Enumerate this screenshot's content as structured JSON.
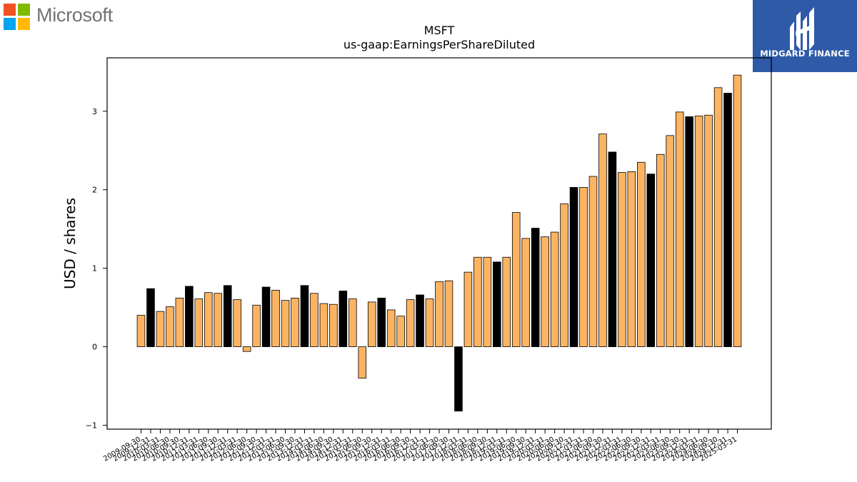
{
  "logo": {
    "text": "Microsoft",
    "colors": [
      "#f25022",
      "#7fba00",
      "#00a4ef",
      "#ffb900"
    ]
  },
  "brand": {
    "text": "MIDGARD FINANCE",
    "color": "#2e5aa8"
  },
  "chart_data": {
    "type": "bar",
    "title": "MSFT",
    "subtitle": "us-gaap:EarningsPerShareDiluted",
    "ylabel": "USD / shares",
    "xlabel": "",
    "ylim": [
      -1.05,
      3.68
    ],
    "yticks": [
      -1,
      0,
      1,
      2,
      3
    ],
    "grid": false,
    "colors": {
      "quarter": "#fdb462",
      "annual": "#000000"
    },
    "bars": [
      {
        "label": "2009-09-30",
        "value": 0.4,
        "annual": false
      },
      {
        "label": "2009-12-31",
        "value": 0.74,
        "annual": true
      },
      {
        "label": "2010-03-31",
        "value": 0.45,
        "annual": false
      },
      {
        "label": "2010-06-30",
        "value": 0.51,
        "annual": false
      },
      {
        "label": "2010-09-30",
        "value": 0.62,
        "annual": false
      },
      {
        "label": "2010-12-31",
        "value": 0.77,
        "annual": true
      },
      {
        "label": "2011-03-31",
        "value": 0.61,
        "annual": false
      },
      {
        "label": "2011-06-30",
        "value": 0.69,
        "annual": false
      },
      {
        "label": "2011-09-30",
        "value": 0.68,
        "annual": false
      },
      {
        "label": "2011-12-31",
        "value": 0.78,
        "annual": true
      },
      {
        "label": "2012-03-31",
        "value": 0.6,
        "annual": false
      },
      {
        "label": "2012-06-30",
        "value": -0.06,
        "annual": false
      },
      {
        "label": "2012-09-30",
        "value": 0.53,
        "annual": false
      },
      {
        "label": "2012-12-31",
        "value": 0.76,
        "annual": true
      },
      {
        "label": "2013-03-31",
        "value": 0.72,
        "annual": false
      },
      {
        "label": "2013-06-30",
        "value": 0.59,
        "annual": false
      },
      {
        "label": "2013-09-30",
        "value": 0.62,
        "annual": false
      },
      {
        "label": "2013-12-31",
        "value": 0.78,
        "annual": true
      },
      {
        "label": "2014-03-31",
        "value": 0.68,
        "annual": false
      },
      {
        "label": "2014-06-30",
        "value": 0.55,
        "annual": false
      },
      {
        "label": "2014-09-30",
        "value": 0.54,
        "annual": false
      },
      {
        "label": "2014-12-31",
        "value": 0.71,
        "annual": true
      },
      {
        "label": "2015-03-31",
        "value": 0.61,
        "annual": false
      },
      {
        "label": "2015-06-30",
        "value": -0.4,
        "annual": false
      },
      {
        "label": "2015-09-30",
        "value": 0.57,
        "annual": false
      },
      {
        "label": "2015-12-31",
        "value": 0.62,
        "annual": true
      },
      {
        "label": "2016-03-31",
        "value": 0.47,
        "annual": false
      },
      {
        "label": "2016-06-30",
        "value": 0.39,
        "annual": false
      },
      {
        "label": "2016-09-30",
        "value": 0.6,
        "annual": false
      },
      {
        "label": "2016-12-31",
        "value": 0.66,
        "annual": true
      },
      {
        "label": "2017-03-31",
        "value": 0.61,
        "annual": false
      },
      {
        "label": "2017-06-30",
        "value": 0.83,
        "annual": false
      },
      {
        "label": "2017-09-30",
        "value": 0.84,
        "annual": false
      },
      {
        "label": "2017-12-31",
        "value": -0.82,
        "annual": true
      },
      {
        "label": "2018-03-31",
        "value": 0.95,
        "annual": false
      },
      {
        "label": "2018-06-30",
        "value": 1.14,
        "annual": false
      },
      {
        "label": "2018-09-30",
        "value": 1.14,
        "annual": false
      },
      {
        "label": "2018-12-31",
        "value": 1.08,
        "annual": true
      },
      {
        "label": "2019-03-31",
        "value": 1.14,
        "annual": false
      },
      {
        "label": "2019-06-30",
        "value": 1.71,
        "annual": false
      },
      {
        "label": "2019-09-30",
        "value": 1.38,
        "annual": false
      },
      {
        "label": "2019-12-31",
        "value": 1.51,
        "annual": true
      },
      {
        "label": "2020-03-31",
        "value": 1.4,
        "annual": false
      },
      {
        "label": "2020-06-30",
        "value": 1.46,
        "annual": false
      },
      {
        "label": "2020-09-30",
        "value": 1.82,
        "annual": false
      },
      {
        "label": "2020-12-31",
        "value": 2.03,
        "annual": true
      },
      {
        "label": "2021-03-31",
        "value": 2.03,
        "annual": false
      },
      {
        "label": "2021-06-30",
        "value": 2.17,
        "annual": false
      },
      {
        "label": "2021-09-30",
        "value": 2.71,
        "annual": false
      },
      {
        "label": "2021-12-31",
        "value": 2.48,
        "annual": true
      },
      {
        "label": "2022-03-31",
        "value": 2.22,
        "annual": false
      },
      {
        "label": "2022-06-30",
        "value": 2.23,
        "annual": false
      },
      {
        "label": "2022-09-30",
        "value": 2.35,
        "annual": false
      },
      {
        "label": "2022-12-31",
        "value": 2.2,
        "annual": true
      },
      {
        "label": "2023-03-31",
        "value": 2.45,
        "annual": false
      },
      {
        "label": "2023-06-30",
        "value": 2.69,
        "annual": false
      },
      {
        "label": "2023-09-30",
        "value": 2.99,
        "annual": false
      },
      {
        "label": "2023-12-31",
        "value": 2.93,
        "annual": true
      },
      {
        "label": "2024-03-31",
        "value": 2.94,
        "annual": false
      },
      {
        "label": "2024-06-30",
        "value": 2.95,
        "annual": false
      },
      {
        "label": "2024-09-30",
        "value": 3.3,
        "annual": false
      },
      {
        "label": "2024-12-31",
        "value": 3.23,
        "annual": true
      },
      {
        "label": "2025-03-31",
        "value": 3.46,
        "annual": false
      }
    ]
  }
}
